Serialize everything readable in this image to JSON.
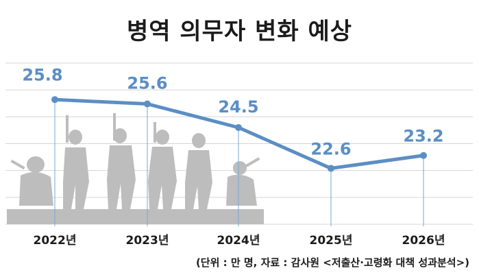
{
  "chart_data": {
    "type": "line",
    "title": "병역 의무자 변화 예상",
    "categories": [
      "2022년",
      "2023년",
      "2024년",
      "2025년",
      "2026년"
    ],
    "values": [
      25.8,
      25.6,
      24.5,
      22.6,
      23.2
    ],
    "value_labels": [
      "25.8",
      "25.6",
      "24.5",
      "22.6",
      "23.2"
    ],
    "ylim": [
      20,
      27.5
    ],
    "grid": true,
    "legend": "none",
    "colors": {
      "line": "#5b8ec4",
      "label": "#5b8ec4",
      "grid": "#d4d4d4",
      "drop_line": "#7aa5d3",
      "silhouette": "#bdbdbd"
    },
    "source": "(단위 : 만 명, 자료 : 감사원 <저출산·고령화 대책 성과분석>)"
  }
}
